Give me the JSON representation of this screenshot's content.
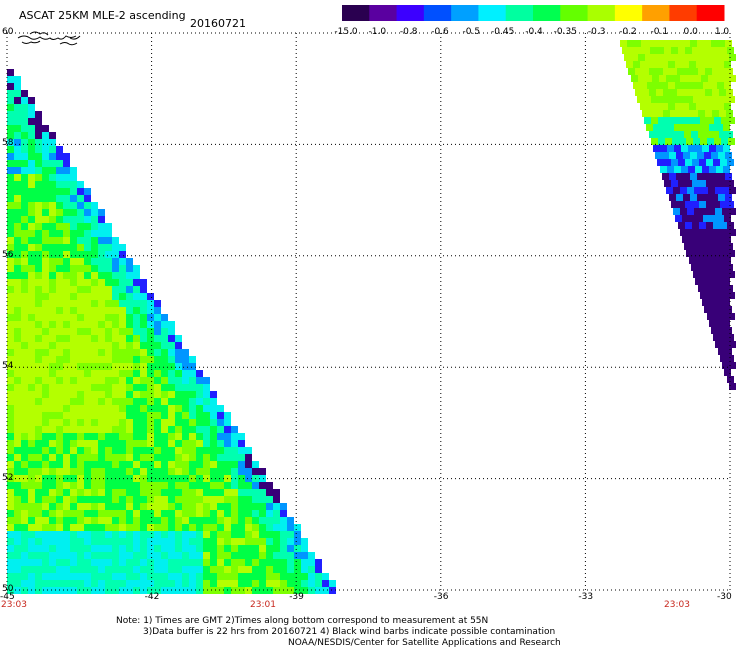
{
  "header": {
    "title": "ASCAT 25KM MLE-2 ascending",
    "date": "20160721"
  },
  "colorbar": {
    "ticks": [
      "-15.0",
      "-1.0",
      "-0.8",
      "-0.6",
      "-0.5",
      "-0.45",
      "-0.4",
      "-0.35",
      "-0.3",
      "-0.2",
      "-0.1",
      "0.0",
      "1.0"
    ],
    "colors": [
      "#2a0050",
      "#5a00a0",
      "#3c00ff",
      "#0050ff",
      "#00a0ff",
      "#00f0ff",
      "#00ffa0",
      "#00ff50",
      "#64ff00",
      "#aaff00",
      "#ffff00",
      "#ffa000",
      "#ff3c00",
      "#ff0000"
    ]
  },
  "axes": {
    "x_ticks": [
      "-45",
      "-42",
      "-39",
      "-36",
      "-33",
      "-30"
    ],
    "y_ticks": [
      "60",
      "58",
      "56",
      "54",
      "52",
      "50"
    ],
    "x_range": [
      -45,
      -30
    ],
    "y_range": [
      50,
      60
    ]
  },
  "times": [
    "23:03",
    "23:01",
    "23:03"
  ],
  "notes": [
    "Note: 1) Times are GMT 2)Times along bottom correspond to measurement at 55N",
    "3)Data buffer is 22 hrs from 20160721 4) Black wind barbs indicate possible contamination",
    "NOAA/NESDIS/Center for Satellite Applications and Research"
  ]
}
